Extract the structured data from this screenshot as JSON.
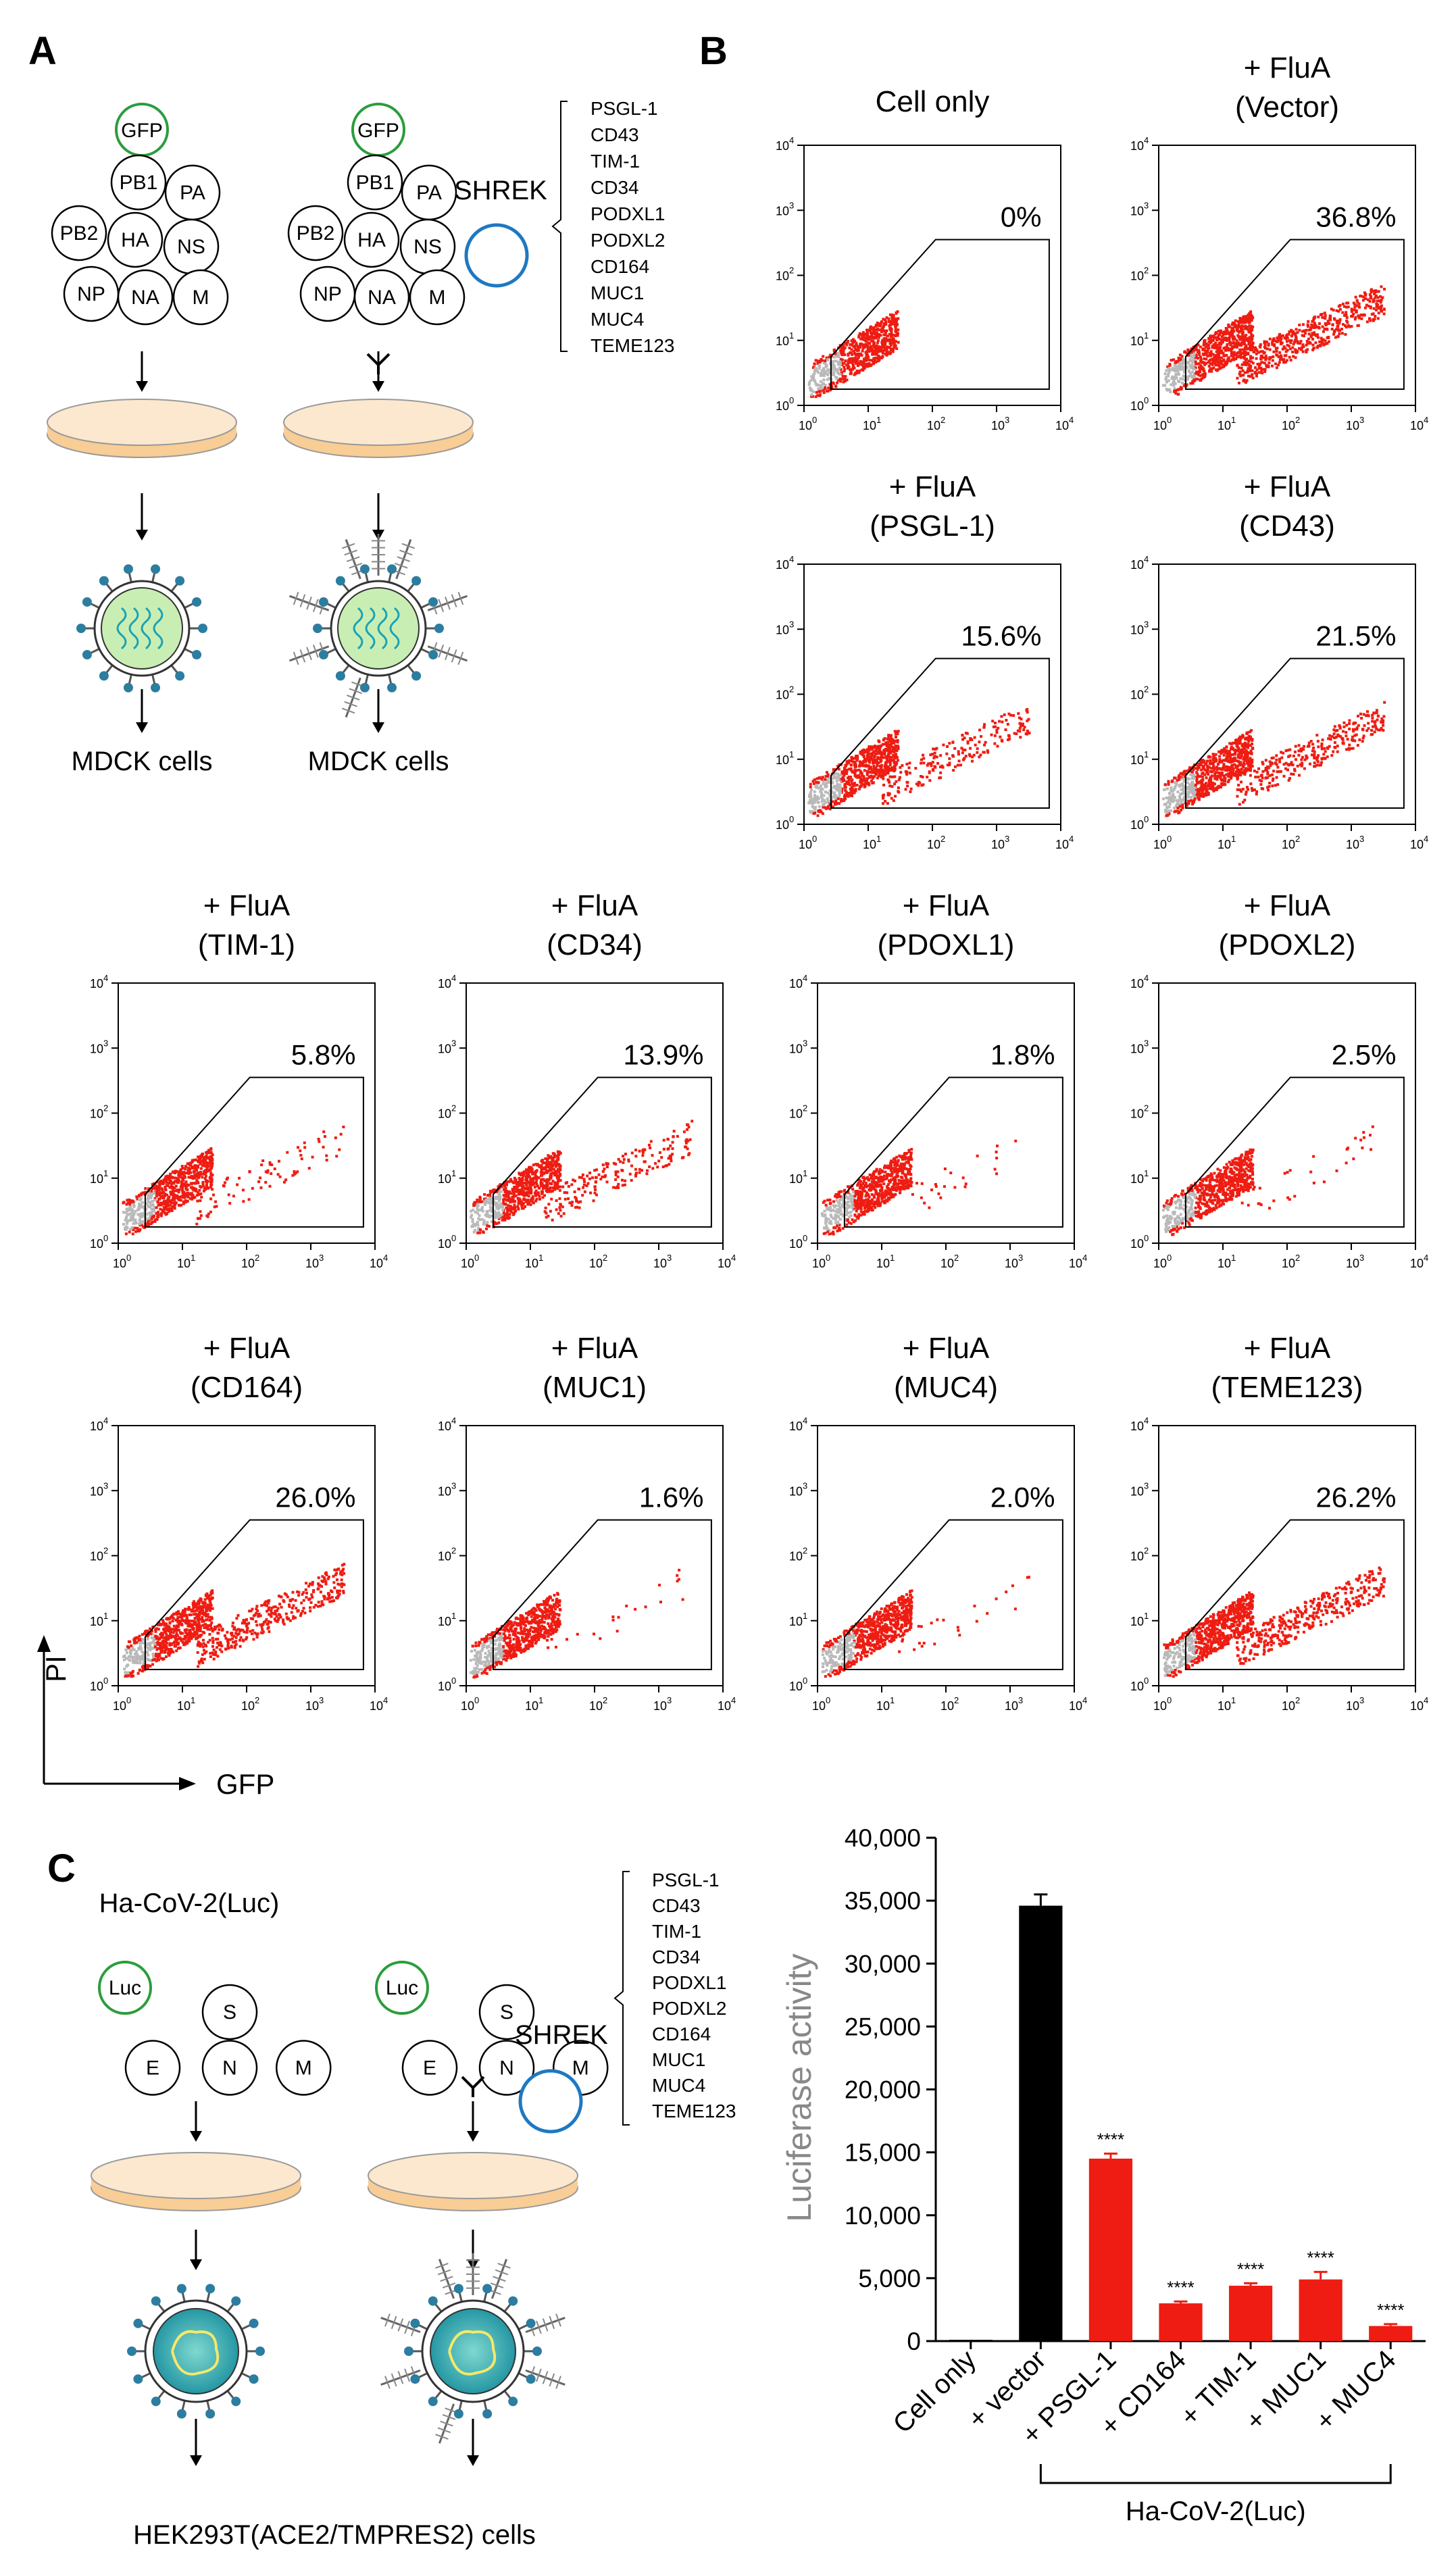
{
  "panel_labels": {
    "a": "A",
    "b": "B",
    "c": "C"
  },
  "panel_a": {
    "gfp": "GFP",
    "segments": [
      "PB1",
      "PA",
      "PB2",
      "HA",
      "NS",
      "NP",
      "NA",
      "M"
    ],
    "shrek_label": "SHREK",
    "shrek_genes": [
      "PSGL-1",
      "CD43",
      "TIM-1",
      "CD34",
      "PODXL1",
      "PODXL2",
      "CD164",
      "MUC1",
      "MUC4",
      "TEME123"
    ],
    "target_cells": "MDCK cells"
  },
  "panel_b": {
    "axis_x": "GFP",
    "axis_y": "PI",
    "plots": [
      {
        "title1": "Cell only",
        "title2": "",
        "percent": "0%",
        "density": 0.0
      },
      {
        "title1": "+ FluA",
        "title2": "(Vector)",
        "percent": "36.8%",
        "density": 0.368
      },
      {
        "title1": "+ FluA",
        "title2": "(PSGL-1)",
        "percent": "15.6%",
        "density": 0.156
      },
      {
        "title1": "+ FluA",
        "title2": "(CD43)",
        "percent": "21.5%",
        "density": 0.215
      },
      {
        "title1": "+ FluA",
        "title2": "(TIM-1)",
        "percent": "5.8%",
        "density": 0.058
      },
      {
        "title1": "+ FluA",
        "title2": "(CD34)",
        "percent": "13.9%",
        "density": 0.139
      },
      {
        "title1": "+ FluA",
        "title2": "(PDOXL1)",
        "percent": "1.8%",
        "density": 0.018
      },
      {
        "title1": "+ FluA",
        "title2": "(PDOXL2)",
        "percent": "2.5%",
        "density": 0.025
      },
      {
        "title1": "+ FluA",
        "title2": "(CD164)",
        "percent": "26.0%",
        "density": 0.26
      },
      {
        "title1": "+ FluA",
        "title2": "(MUC1)",
        "percent": "1.6%",
        "density": 0.016
      },
      {
        "title1": "+ FluA",
        "title2": "(MUC4)",
        "percent": "2.0%",
        "density": 0.02
      },
      {
        "title1": "+ FluA",
        "title2": "(TEME123)",
        "percent": "26.2%",
        "density": 0.262
      }
    ],
    "tick_base": "10",
    "tick_exps": [
      "0",
      "1",
      "2",
      "3",
      "4"
    ]
  },
  "panel_c": {
    "virus_title": "Ha-CoV-2(Luc)",
    "luc": "Luc",
    "segments": [
      "S",
      "E",
      "N",
      "M"
    ],
    "shrek_label": "SHREK",
    "shrek_genes": [
      "PSGL-1",
      "CD43",
      "TIM-1",
      "CD34",
      "PODXL1",
      "PODXL2",
      "CD164",
      "MUC1",
      "MUC4",
      "TEME123"
    ],
    "target_cells": "HEK293T(ACE2/TMPRES2) cells"
  },
  "colors": {
    "red": "#ee1c12",
    "black": "#000000",
    "orange": "#f8cd96",
    "green": "#2a9d3c",
    "blue": "#1f78c1",
    "teal": "#1aa3b3",
    "lightgreen": "#c9eeb3"
  },
  "chart_data": {
    "type": "bar",
    "title": "",
    "xlabel": "",
    "ylabel": "Luciferase activity",
    "categories": [
      "Cell only",
      "+ vector",
      "+ PSGL-1",
      "+ CD164",
      "+ TIM-1",
      "+ MUC1",
      "+ MUC4"
    ],
    "values": [
      100,
      34600,
      14500,
      3000,
      4400,
      4900,
      1200
    ],
    "errors": [
      0,
      900,
      400,
      150,
      200,
      600,
      150
    ],
    "bar_colors": [
      "#000000",
      "#000000",
      "#ee1c12",
      "#ee1c12",
      "#ee1c12",
      "#ee1c12",
      "#ee1c12"
    ],
    "significance": [
      "",
      "",
      "****",
      "****",
      "****",
      "****",
      "****"
    ],
    "ylim": [
      0,
      40000
    ],
    "yticks": [
      0,
      5000,
      10000,
      15000,
      20000,
      25000,
      30000,
      35000,
      40000
    ],
    "ytick_labels": [
      "0",
      "5,000",
      "10,000",
      "15,000",
      "20,000",
      "25,000",
      "30,000",
      "35,000",
      "40,000"
    ],
    "bracket_label": "Ha-CoV-2(Luc)"
  }
}
